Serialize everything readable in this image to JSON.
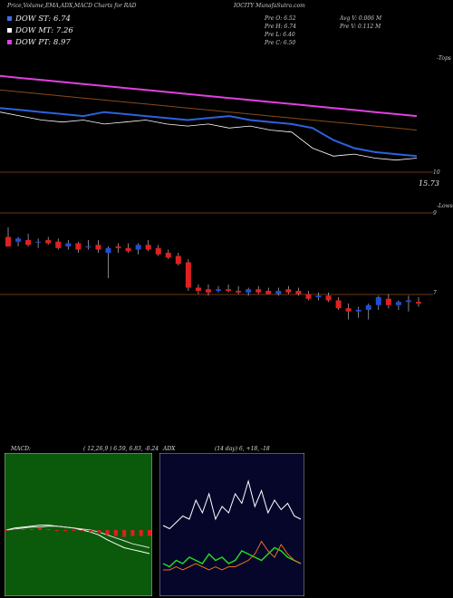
{
  "header": {
    "title_left": "Price,Volume,EMA,ADX,MACD Charts for RAD",
    "title_right": "IOCITY MunafaSutra.com"
  },
  "legend": [
    {
      "label": "DOW ST: 6.74",
      "color": "#3b6fe8"
    },
    {
      "label": "DOW MT: 7.26",
      "color": "#ffffff"
    },
    {
      "label": "DOW PT: 8.97",
      "color": "#e040e0"
    }
  ],
  "stats": {
    "open": "Pre O: 6.52",
    "high": "Pre H: 6.74",
    "low": "Pre L: 6.40",
    "close": "Pre C: 6.50",
    "avgv": "Avg V: 0.006 M",
    "prev": "Pre V: 0.112 M"
  },
  "ema_panel": {
    "tops_label": "-Tops",
    "lows_label": "-Lows",
    "level_10": "10",
    "price_label": "15.73",
    "level_9": "9"
  },
  "candle_panel": {
    "level_7": "7"
  },
  "macd": {
    "title": "MACD:",
    "params": "( 12,26,9 ) 6.59, 6.83, -0.24"
  },
  "adx": {
    "title": "ADX",
    "params": "(14 day) 6, +18, -18"
  },
  "colors": {
    "ema_blue": "#2c62e0",
    "ema_magenta": "#e040e0",
    "ema_brown": "#8a4a1a",
    "up": "#1f4ed6",
    "down": "#e02020",
    "macd_bg": "#0b5a0b",
    "adx_bg": "#06062a"
  },
  "chart_data": [
    {
      "type": "line",
      "title": "EMA overlay",
      "series": [
        {
          "name": "DOW ST",
          "values": [
            11.2,
            11.15,
            11.1,
            11.05,
            11.0,
            11.1,
            11.05,
            11.0,
            10.95,
            10.9,
            10.95,
            11.0,
            10.9,
            10.85,
            10.8,
            10.7,
            10.4,
            10.2,
            10.1,
            10.05,
            10.0
          ]
        },
        {
          "name": "DOW MT",
          "values": [
            11.1,
            11.0,
            10.9,
            10.85,
            10.9,
            10.8,
            10.85,
            10.9,
            10.8,
            10.75,
            10.8,
            10.7,
            10.75,
            10.65,
            10.6,
            10.2,
            10.0,
            10.05,
            9.95,
            9.9,
            9.95
          ]
        },
        {
          "name": "DOW PT",
          "values": [
            12.0,
            11.95,
            11.9,
            11.85,
            11.8,
            11.75,
            11.7,
            11.65,
            11.6,
            11.55,
            11.5,
            11.45,
            11.4,
            11.35,
            11.3,
            11.25,
            11.2,
            11.15,
            11.1,
            11.05,
            11.0
          ]
        }
      ]
    },
    {
      "type": "candlestick",
      "title": "Price",
      "ylim": [
        5.5,
        9.5
      ],
      "candles": [
        {
          "o": 8.6,
          "h": 8.9,
          "l": 8.3,
          "c": 8.3
        },
        {
          "o": 8.45,
          "h": 8.6,
          "l": 8.3,
          "c": 8.55
        },
        {
          "o": 8.5,
          "h": 8.7,
          "l": 8.3,
          "c": 8.35
        },
        {
          "o": 8.45,
          "h": 8.55,
          "l": 8.25,
          "c": 8.45
        },
        {
          "o": 8.5,
          "h": 8.6,
          "l": 8.35,
          "c": 8.4
        },
        {
          "o": 8.45,
          "h": 8.55,
          "l": 8.2,
          "c": 8.25
        },
        {
          "o": 8.3,
          "h": 8.5,
          "l": 8.2,
          "c": 8.4
        },
        {
          "o": 8.4,
          "h": 8.45,
          "l": 8.1,
          "c": 8.2
        },
        {
          "o": 8.3,
          "h": 8.5,
          "l": 8.2,
          "c": 8.3
        },
        {
          "o": 8.35,
          "h": 8.5,
          "l": 8.1,
          "c": 8.2
        },
        {
          "o": 8.1,
          "h": 8.3,
          "l": 7.3,
          "c": 8.25
        },
        {
          "o": 8.3,
          "h": 8.4,
          "l": 8.1,
          "c": 8.25
        },
        {
          "o": 8.25,
          "h": 8.4,
          "l": 8.1,
          "c": 8.15
        },
        {
          "o": 8.2,
          "h": 8.4,
          "l": 8.05,
          "c": 8.35
        },
        {
          "o": 8.35,
          "h": 8.5,
          "l": 8.15,
          "c": 8.2
        },
        {
          "o": 8.25,
          "h": 8.35,
          "l": 8.0,
          "c": 8.05
        },
        {
          "o": 8.1,
          "h": 8.2,
          "l": 7.9,
          "c": 7.95
        },
        {
          "o": 8.0,
          "h": 8.1,
          "l": 7.7,
          "c": 7.75
        },
        {
          "o": 7.8,
          "h": 7.9,
          "l": 6.9,
          "c": 7.0
        },
        {
          "o": 7.0,
          "h": 7.1,
          "l": 6.8,
          "c": 6.9
        },
        {
          "o": 6.95,
          "h": 7.1,
          "l": 6.75,
          "c": 6.85
        },
        {
          "o": 6.9,
          "h": 7.05,
          "l": 6.85,
          "c": 6.95
        },
        {
          "o": 6.95,
          "h": 7.1,
          "l": 6.85,
          "c": 6.9
        },
        {
          "o": 6.9,
          "h": 7.05,
          "l": 6.8,
          "c": 6.85
        },
        {
          "o": 6.85,
          "h": 7.0,
          "l": 6.75,
          "c": 6.95
        },
        {
          "o": 6.95,
          "h": 7.05,
          "l": 6.8,
          "c": 6.85
        },
        {
          "o": 6.9,
          "h": 7.0,
          "l": 6.8,
          "c": 6.8
        },
        {
          "o": 6.8,
          "h": 7.0,
          "l": 6.75,
          "c": 6.9
        },
        {
          "o": 6.95,
          "h": 7.05,
          "l": 6.8,
          "c": 6.85
        },
        {
          "o": 6.9,
          "h": 7.0,
          "l": 6.75,
          "c": 6.8
        },
        {
          "o": 6.8,
          "h": 6.9,
          "l": 6.6,
          "c": 6.65
        },
        {
          "o": 6.7,
          "h": 6.85,
          "l": 6.6,
          "c": 6.75
        },
        {
          "o": 6.75,
          "h": 6.85,
          "l": 6.55,
          "c": 6.6
        },
        {
          "o": 6.6,
          "h": 6.7,
          "l": 6.3,
          "c": 6.35
        },
        {
          "o": 6.35,
          "h": 6.5,
          "l": 6.0,
          "c": 6.25
        },
        {
          "o": 6.25,
          "h": 6.4,
          "l": 6.05,
          "c": 6.3
        },
        {
          "o": 6.3,
          "h": 6.5,
          "l": 6.0,
          "c": 6.45
        },
        {
          "o": 6.45,
          "h": 6.75,
          "l": 6.3,
          "c": 6.7
        },
        {
          "o": 6.65,
          "h": 6.8,
          "l": 6.35,
          "c": 6.45
        },
        {
          "o": 6.45,
          "h": 6.6,
          "l": 6.3,
          "c": 6.55
        },
        {
          "o": 6.55,
          "h": 6.75,
          "l": 6.25,
          "c": 6.6
        },
        {
          "o": 6.55,
          "h": 6.7,
          "l": 6.4,
          "c": 6.5
        }
      ]
    },
    {
      "type": "line",
      "title": "MACD",
      "series": [
        {
          "name": "macd",
          "values": [
            0.0,
            0.02,
            0.03,
            0.04,
            0.05,
            0.05,
            0.04,
            0.03,
            0.02,
            0.0,
            -0.02,
            -0.05,
            -0.1,
            -0.14,
            -0.18,
            -0.2,
            -0.22,
            -0.24
          ]
        },
        {
          "name": "signal",
          "values": [
            0.0,
            0.01,
            0.02,
            0.03,
            0.03,
            0.04,
            0.04,
            0.03,
            0.02,
            0.01,
            0.0,
            -0.02,
            -0.05,
            -0.08,
            -0.11,
            -0.14,
            -0.16,
            -0.18
          ]
        }
      ]
    },
    {
      "type": "line",
      "title": "ADX",
      "series": [
        {
          "name": "adx",
          "values": [
            20,
            19,
            21,
            23,
            22,
            28,
            24,
            30,
            22,
            26,
            24,
            30,
            27,
            34,
            26,
            31,
            24,
            28,
            25,
            27,
            23,
            22
          ]
        },
        {
          "name": "+DI",
          "values": [
            8,
            7,
            9,
            8,
            10,
            9,
            8,
            11,
            9,
            10,
            8,
            9,
            12,
            11,
            10,
            9,
            11,
            13,
            12,
            10,
            9,
            8
          ]
        },
        {
          "name": "-DI",
          "values": [
            6,
            6,
            7,
            6,
            7,
            8,
            7,
            6,
            7,
            6,
            7,
            7,
            8,
            9,
            11,
            15,
            12,
            10,
            14,
            11,
            9,
            8
          ]
        }
      ]
    }
  ]
}
